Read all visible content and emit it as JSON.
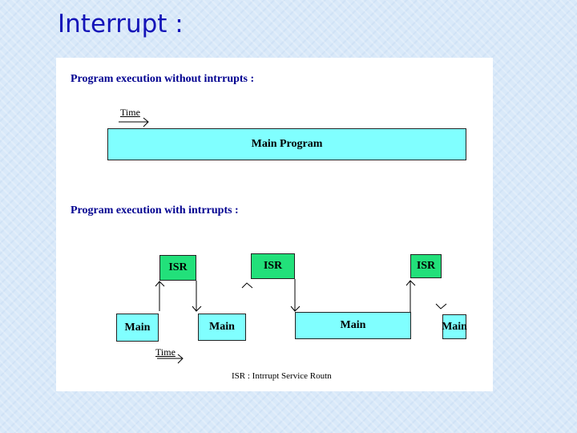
{
  "slide": {
    "title": "Interrupt :"
  },
  "diagram": {
    "section1": {
      "heading": "Program execution without intrrupts :",
      "time_label": "Time",
      "bar_label": "Main Program"
    },
    "section2": {
      "heading": "Program execution with intrrupts :",
      "time_label": "Time",
      "isr_blocks": [
        "ISR",
        "ISR",
        "ISR"
      ],
      "main_blocks": [
        "Main",
        "Main",
        "Main",
        "Main"
      ],
      "legend": "ISR :  Intrrupt Service Routn"
    },
    "colors": {
      "main": "#80ffff",
      "isr": "#22e07a",
      "heading": "#000090",
      "title": "#1414b8"
    }
  }
}
